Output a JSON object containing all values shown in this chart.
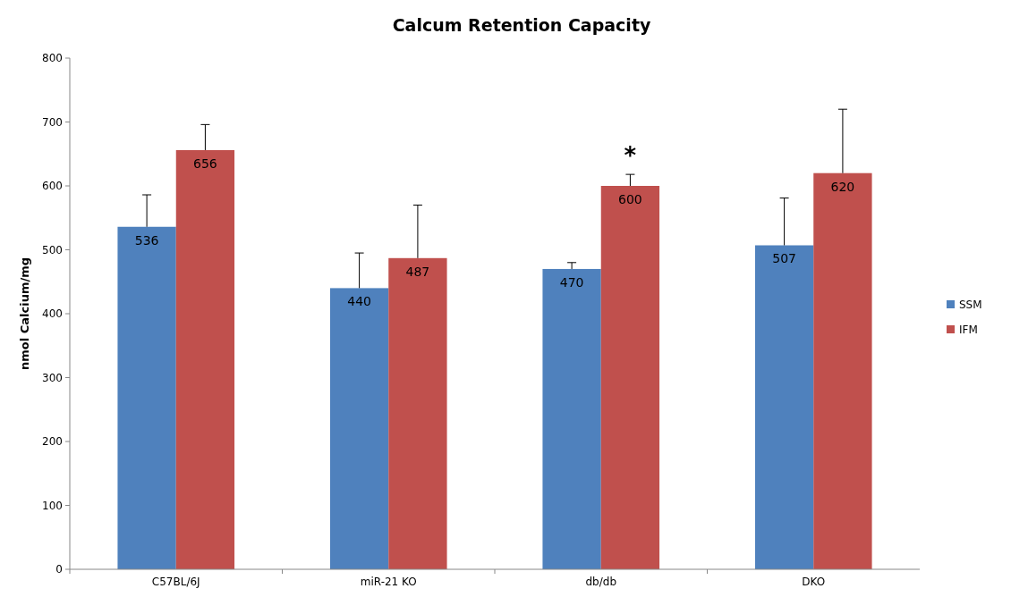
{
  "chart_data": {
    "type": "bar",
    "title": "Calcum Retention Capacity",
    "ylabel": "nmol Calcium/mg",
    "categories": [
      "C57BL/6J",
      "miR-21 KO",
      "db/db",
      "DKO"
    ],
    "series": [
      {
        "name": "SSM",
        "color": "#4f81bd",
        "values": [
          536,
          440,
          470,
          507
        ],
        "errors": [
          [
            536,
            586
          ],
          [
            440,
            495
          ],
          [
            470,
            480
          ],
          [
            507,
            581
          ]
        ]
      },
      {
        "name": "IFM",
        "color": "#c0504d",
        "values": [
          656,
          487,
          600,
          620
        ],
        "errors": [
          [
            656,
            696
          ],
          [
            487,
            570
          ],
          [
            600,
            618
          ],
          [
            620,
            720
          ]
        ]
      }
    ],
    "ylim": [
      0,
      800
    ],
    "yticks": [
      0,
      100,
      200,
      300,
      400,
      500,
      600,
      700,
      800
    ],
    "grid": false,
    "legend": "right",
    "data_labels": true,
    "annotations": [
      "*"
    ]
  }
}
